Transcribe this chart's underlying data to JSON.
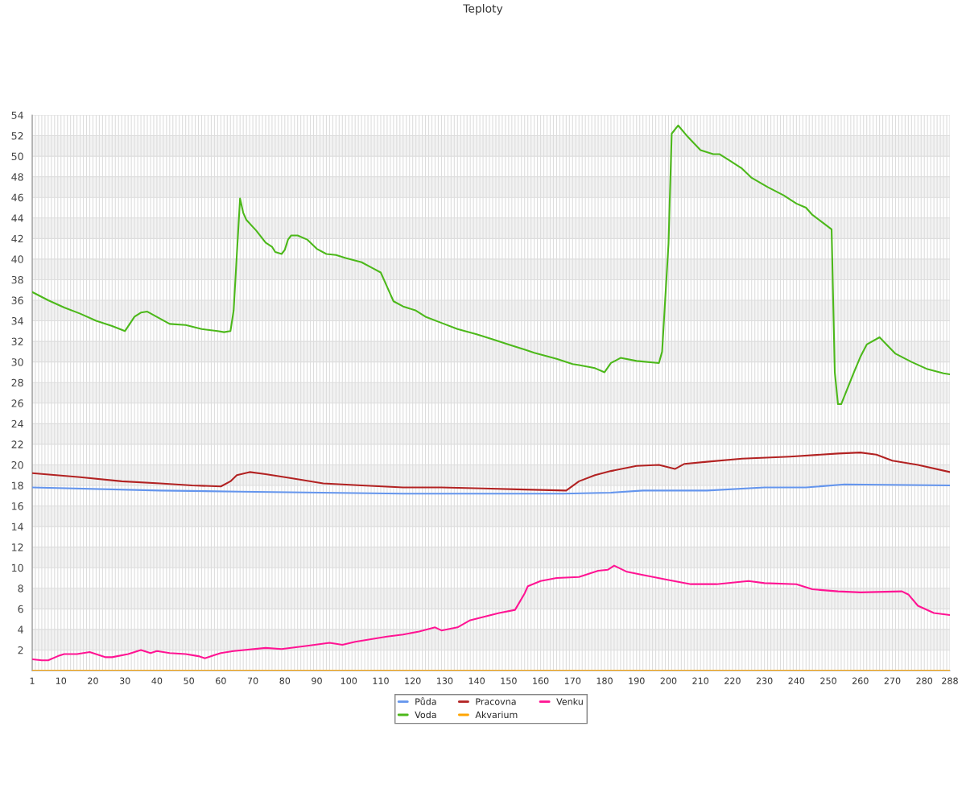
{
  "chart_data": {
    "type": "line",
    "title": "Teploty",
    "xlim": [
      1,
      288
    ],
    "xticks": [
      1,
      {
        "value": 2,
        "label": null
      },
      {
        "value": 3,
        "label": null
      },
      {
        "value": 4,
        "label": null
      },
      {
        "value": 5,
        "label": null
      },
      {
        "value": 6,
        "label": null
      },
      {
        "value": 7,
        "label": null
      },
      {
        "value": 8,
        "label": null
      },
      {
        "value": 9,
        "label": null
      },
      10,
      {
        "value": 11,
        "label": null
      },
      {
        "value": 12,
        "label": null
      },
      {
        "value": 13,
        "label": null
      },
      {
        "value": 14,
        "label": null
      },
      {
        "value": 15,
        "label": null
      },
      {
        "value": 16,
        "label": null
      },
      {
        "value": 17,
        "label": null
      },
      {
        "value": 18,
        "label": null
      },
      {
        "value": 19,
        "label": null
      },
      20,
      {
        "value": 21,
        "label": null
      },
      {
        "value": 22,
        "label": null
      },
      {
        "value": 23,
        "label": null
      },
      {
        "value": 24,
        "label": null
      },
      {
        "value": 25,
        "label": null
      },
      {
        "value": 26,
        "label": null
      },
      {
        "value": 27,
        "label": null
      },
      {
        "value": 28,
        "label": null
      },
      {
        "value": 29,
        "label": null
      },
      30,
      {
        "value": 31,
        "label": null
      },
      {
        "value": 32,
        "label": null
      },
      {
        "value": 33,
        "label": null
      },
      {
        "value": 34,
        "label": null
      },
      {
        "value": 35,
        "label": null
      },
      {
        "value": 36,
        "label": null
      },
      {
        "value": 37,
        "label": null
      },
      {
        "value": 38,
        "label": null
      },
      {
        "value": 39,
        "label": null
      },
      40,
      {
        "value": 41,
        "label": null
      },
      {
        "value": 42,
        "label": null
      },
      {
        "value": 43,
        "label": null
      },
      {
        "value": 44,
        "label": null
      },
      {
        "value": 45,
        "label": null
      },
      {
        "value": 46,
        "label": null
      },
      {
        "value": 47,
        "label": null
      },
      {
        "value": 48,
        "label": null
      },
      {
        "value": 49,
        "label": null
      },
      50,
      {
        "value": 51,
        "label": null
      },
      {
        "value": 52,
        "label": null
      },
      {
        "value": 53,
        "label": null
      },
      {
        "value": 54,
        "label": null
      },
      {
        "value": 55,
        "label": null
      },
      {
        "value": 56,
        "label": null
      },
      {
        "value": 57,
        "label": null
      },
      {
        "value": 58,
        "label": null
      },
      {
        "value": 59,
        "label": null
      },
      60,
      {
        "value": 61,
        "label": null
      },
      {
        "value": 62,
        "label": null
      },
      {
        "value": 63,
        "label": null
      },
      {
        "value": 64,
        "label": null
      },
      {
        "value": 65,
        "label": null
      },
      {
        "value": 66,
        "label": null
      },
      {
        "value": 67,
        "label": null
      },
      {
        "value": 68,
        "label": null
      },
      {
        "value": 69,
        "label": null
      },
      70,
      {
        "value": 71,
        "label": null
      },
      {
        "value": 72,
        "label": null
      },
      {
        "value": 73,
        "label": null
      },
      {
        "value": 74,
        "label": null
      },
      {
        "value": 75,
        "label": null
      },
      {
        "value": 76,
        "label": null
      },
      {
        "value": 77,
        "label": null
      },
      {
        "value": 78,
        "label": null
      },
      {
        "value": 79,
        "label": null
      },
      80,
      {
        "value": 81,
        "label": null
      },
      {
        "value": 82,
        "label": null
      },
      {
        "value": 83,
        "label": null
      },
      {
        "value": 84,
        "label": null
      },
      {
        "value": 85,
        "label": null
      },
      {
        "value": 86,
        "label": null
      },
      {
        "value": 87,
        "label": null
      },
      {
        "value": 88,
        "label": null
      },
      {
        "value": 89,
        "label": null
      },
      90,
      {
        "value": 91,
        "label": null
      },
      {
        "value": 92,
        "label": null
      },
      {
        "value": 93,
        "label": null
      },
      {
        "value": 94,
        "label": null
      },
      {
        "value": 95,
        "label": null
      },
      {
        "value": 96,
        "label": null
      },
      {
        "value": 97,
        "label": null
      },
      {
        "value": 98,
        "label": null
      },
      {
        "value": 99,
        "label": null
      },
      100,
      {
        "value": 101,
        "label": null
      },
      {
        "value": 102,
        "label": null
      },
      {
        "value": 103,
        "label": null
      },
      {
        "value": 104,
        "label": null
      },
      {
        "value": 105,
        "label": null
      },
      {
        "value": 106,
        "label": null
      },
      {
        "value": 107,
        "label": null
      },
      {
        "value": 108,
        "label": null
      },
      {
        "value": 109,
        "label": null
      },
      110,
      {
        "value": 111,
        "label": null
      },
      {
        "value": 112,
        "label": null
      },
      {
        "value": 113,
        "label": null
      },
      {
        "value": 114,
        "label": null
      },
      {
        "value": 115,
        "label": null
      },
      {
        "value": 116,
        "label": null
      },
      {
        "value": 117,
        "label": null
      },
      {
        "value": 118,
        "label": null
      },
      {
        "value": 119,
        "label": null
      },
      120,
      {
        "value": 121,
        "label": null
      },
      {
        "value": 122,
        "label": null
      },
      {
        "value": 123,
        "label": null
      },
      {
        "value": 124,
        "label": null
      },
      {
        "value": 125,
        "label": null
      },
      {
        "value": 126,
        "label": null
      },
      {
        "value": 127,
        "label": null
      },
      {
        "value": 128,
        "label": null
      },
      {
        "value": 129,
        "label": null
      },
      130,
      {
        "value": 131,
        "label": null
      },
      {
        "value": 132,
        "label": null
      },
      {
        "value": 133,
        "label": null
      },
      {
        "value": 134,
        "label": null
      },
      {
        "value": 135,
        "label": null
      },
      {
        "value": 136,
        "label": null
      },
      {
        "value": 137,
        "label": null
      },
      {
        "value": 138,
        "label": null
      },
      {
        "value": 139,
        "label": null
      },
      140,
      {
        "value": 141,
        "label": null
      },
      {
        "value": 142,
        "label": null
      },
      {
        "value": 143,
        "label": null
      },
      {
        "value": 144,
        "label": null
      },
      {
        "value": 145,
        "label": null
      },
      {
        "value": 146,
        "label": null
      },
      {
        "value": 147,
        "label": null
      },
      {
        "value": 148,
        "label": null
      },
      {
        "value": 149,
        "label": null
      },
      150,
      {
        "value": 151,
        "label": null
      },
      {
        "value": 152,
        "label": null
      },
      {
        "value": 153,
        "label": null
      },
      {
        "value": 154,
        "label": null
      },
      {
        "value": 155,
        "label": null
      },
      {
        "value": 156,
        "label": null
      },
      {
        "value": 157,
        "label": null
      },
      {
        "value": 158,
        "label": null
      },
      {
        "value": 159,
        "label": null
      },
      160,
      {
        "value": 161,
        "label": null
      },
      {
        "value": 162,
        "label": null
      },
      {
        "value": 163,
        "label": null
      },
      {
        "value": 164,
        "label": null
      },
      {
        "value": 165,
        "label": null
      },
      {
        "value": 166,
        "label": null
      },
      {
        "value": 167,
        "label": null
      },
      {
        "value": 168,
        "label": null
      },
      {
        "value": 169,
        "label": null
      },
      170,
      {
        "value": 171,
        "label": null
      },
      {
        "value": 172,
        "label": null
      },
      {
        "value": 173,
        "label": null
      },
      {
        "value": 174,
        "label": null
      },
      {
        "value": 175,
        "label": null
      },
      {
        "value": 176,
        "label": null
      },
      {
        "value": 177,
        "label": null
      },
      {
        "value": 178,
        "label": null
      },
      {
        "value": 179,
        "label": null
      },
      180,
      {
        "value": 181,
        "label": null
      },
      {
        "value": 182,
        "label": null
      },
      {
        "value": 183,
        "label": null
      },
      {
        "value": 184,
        "label": null
      },
      {
        "value": 185,
        "label": null
      },
      {
        "value": 186,
        "label": null
      },
      {
        "value": 187,
        "label": null
      },
      {
        "value": 188,
        "label": null
      },
      {
        "value": 189,
        "label": null
      },
      190,
      {
        "value": 191,
        "label": null
      },
      {
        "value": 192,
        "label": null
      },
      {
        "value": 193,
        "label": null
      },
      {
        "value": 194,
        "label": null
      },
      {
        "value": 195,
        "label": null
      },
      {
        "value": 196,
        "label": null
      },
      {
        "value": 197,
        "label": null
      },
      {
        "value": 198,
        "label": null
      },
      {
        "value": 199,
        "label": null
      },
      200,
      {
        "value": 201,
        "label": null
      },
      {
        "value": 202,
        "label": null
      },
      {
        "value": 203,
        "label": null
      },
      {
        "value": 204,
        "label": null
      },
      {
        "value": 205,
        "label": null
      },
      {
        "value": 206,
        "label": null
      },
      {
        "value": 207,
        "label": null
      },
      {
        "value": 208,
        "label": null
      },
      {
        "value": 209,
        "label": null
      },
      210,
      {
        "value": 211,
        "label": null
      },
      {
        "value": 212,
        "label": null
      },
      {
        "value": 213,
        "label": null
      },
      {
        "value": 214,
        "label": null
      },
      {
        "value": 215,
        "label": null
      },
      {
        "value": 216,
        "label": null
      },
      {
        "value": 217,
        "label": null
      },
      {
        "value": 218,
        "label": null
      },
      {
        "value": 219,
        "label": null
      },
      220,
      {
        "value": 221,
        "label": null
      },
      {
        "value": 222,
        "label": null
      },
      {
        "value": 223,
        "label": null
      },
      {
        "value": 224,
        "label": null
      },
      {
        "value": 225,
        "label": null
      },
      {
        "value": 226,
        "label": null
      },
      {
        "value": 227,
        "label": null
      },
      {
        "value": 228,
        "label": null
      },
      {
        "value": 229,
        "label": null
      },
      230,
      {
        "value": 231,
        "label": null
      },
      {
        "value": 232,
        "label": null
      },
      {
        "value": 233,
        "label": null
      },
      {
        "value": 234,
        "label": null
      },
      {
        "value": 235,
        "label": null
      },
      {
        "value": 236,
        "label": null
      },
      {
        "value": 237,
        "label": null
      },
      {
        "value": 238,
        "label": null
      },
      {
        "value": 239,
        "label": null
      },
      240,
      {
        "value": 241,
        "label": null
      },
      {
        "value": 242,
        "label": null
      },
      {
        "value": 243,
        "label": null
      },
      {
        "value": 244,
        "label": null
      },
      {
        "value": 245,
        "label": null
      },
      {
        "value": 246,
        "label": null
      },
      {
        "value": 247,
        "label": null
      },
      {
        "value": 248,
        "label": null
      },
      {
        "value": 249,
        "label": null
      },
      250,
      {
        "value": 251,
        "label": null
      },
      {
        "value": 252,
        "label": null
      },
      {
        "value": 253,
        "label": null
      },
      {
        "value": 254,
        "label": null
      },
      {
        "value": 255,
        "label": null
      },
      {
        "value": 256,
        "label": null
      },
      {
        "value": 257,
        "label": null
      },
      {
        "value": 258,
        "label": null
      },
      {
        "value": 259,
        "label": null
      },
      260,
      {
        "value": 261,
        "label": null
      },
      {
        "value": 262,
        "label": null
      },
      {
        "value": 263,
        "label": null
      },
      {
        "value": 264,
        "label": null
      },
      {
        "value": 265,
        "label": null
      },
      {
        "value": 266,
        "label": null
      },
      {
        "value": 267,
        "label": null
      },
      {
        "value": 268,
        "label": null
      },
      {
        "value": 269,
        "label": null
      },
      270,
      {
        "value": 271,
        "label": null
      },
      {
        "value": 272,
        "label": null
      },
      {
        "value": 273,
        "label": null
      },
      {
        "value": 274,
        "label": null
      },
      {
        "value": 275,
        "label": null
      },
      {
        "value": 276,
        "label": null
      },
      {
        "value": 277,
        "label": null
      },
      {
        "value": 278,
        "label": null
      },
      {
        "value": 279,
        "label": null
      },
      280,
      {
        "value": 281,
        "label": null
      },
      {
        "value": 282,
        "label": null
      },
      {
        "value": 283,
        "label": null
      },
      {
        "value": 284,
        "label": null
      },
      {
        "value": 285,
        "label": null
      },
      {
        "value": 286,
        "label": null
      },
      {
        "value": 287,
        "label": null
      },
      288
    ],
    "ylim": [
      0,
      54
    ],
    "yticks": [
      {
        "value": 0,
        "label": null
      },
      2,
      4,
      6,
      8,
      10,
      12,
      14,
      16,
      18,
      20,
      22,
      24,
      26,
      28,
      30,
      32,
      34,
      36,
      38,
      40,
      42,
      44,
      46,
      48,
      50,
      52,
      54
    ],
    "grid": true,
    "legend": "bottom",
    "marker": "none",
    "line_style": "solid",
    "bands": [
      {
        "axis": "y",
        "from": 2,
        "to": 4,
        "color": "#f2f2f2"
      },
      {
        "axis": "y",
        "from": 6,
        "to": 8,
        "color": "#f2f2f2"
      },
      {
        "axis": "y",
        "from": 10,
        "to": 12,
        "color": "#f2f2f2"
      },
      {
        "axis": "y",
        "from": 14,
        "to": 16,
        "color": "#f2f2f2"
      },
      {
        "axis": "y",
        "from": 18,
        "to": 20,
        "color": "#f2f2f2"
      },
      {
        "axis": "y",
        "from": 22,
        "to": 24,
        "color": "#f2f2f2"
      },
      {
        "axis": "y",
        "from": 26,
        "to": 28,
        "color": "#f2f2f2"
      },
      {
        "axis": "y",
        "from": 30,
        "to": 32,
        "color": "#f2f2f2"
      },
      {
        "axis": "y",
        "from": 34,
        "to": 36,
        "color": "#f2f2f2"
      },
      {
        "axis": "y",
        "from": 38,
        "to": 40,
        "color": "#f2f2f2"
      },
      {
        "axis": "y",
        "from": 42,
        "to": 44,
        "color": "#f2f2f2"
      },
      {
        "axis": "y",
        "from": 46,
        "to": 48,
        "color": "#f2f2f2"
      },
      {
        "axis": "y",
        "from": 50,
        "to": 52,
        "color": "#f2f2f2"
      }
    ],
    "series": [
      {
        "name": "Půda",
        "color": "#6495ed",
        "x": [
          1,
          41,
          66,
          117,
          167,
          182,
          192,
          212,
          230,
          243,
          255,
          288
        ],
        "values": [
          17.8,
          17.5,
          17.4,
          17.2,
          17.2,
          17.3,
          17.5,
          17.5,
          17.8,
          17.8,
          18.1,
          18.0
        ]
      },
      {
        "name": "Voda",
        "color": "#4cb81a",
        "x": [
          1,
          6,
          11,
          16,
          21,
          26,
          30,
          33,
          35,
          37,
          44,
          49,
          54,
          59,
          61,
          63,
          64,
          66,
          67,
          68,
          71,
          74,
          76,
          77,
          79,
          80,
          81,
          82,
          84,
          87,
          90,
          93,
          96,
          99,
          104,
          107,
          110,
          111,
          113,
          114,
          117,
          121,
          124,
          129,
          134,
          140,
          145,
          150,
          155,
          158,
          165,
          170,
          172,
          177,
          180,
          182,
          185,
          190,
          197,
          198,
          200,
          201,
          203,
          206,
          210,
          214,
          216,
          219,
          223,
          226,
          231,
          236,
          240,
          243,
          245,
          248,
          251,
          252,
          253,
          254,
          258,
          260,
          262,
          266,
          271,
          276,
          281,
          286,
          288
        ],
        "values": [
          36.8,
          36.0,
          35.3,
          34.7,
          34.0,
          33.5,
          33.0,
          34.4,
          34.8,
          34.9,
          33.7,
          33.6,
          33.2,
          33.0,
          32.9,
          33.0,
          35.0,
          45.9,
          44.5,
          43.8,
          42.8,
          41.6,
          41.2,
          40.7,
          40.5,
          40.9,
          41.9,
          42.3,
          42.3,
          41.9,
          41.0,
          40.5,
          40.4,
          40.1,
          39.7,
          39.2,
          38.7,
          38.0,
          36.6,
          35.9,
          35.4,
          35.0,
          34.4,
          33.8,
          33.2,
          32.7,
          32.2,
          31.7,
          31.2,
          30.9,
          30.3,
          29.8,
          29.7,
          29.4,
          29.0,
          29.9,
          30.4,
          30.1,
          29.9,
          31.0,
          41.5,
          52.2,
          53.0,
          51.9,
          50.6,
          50.2,
          50.2,
          49.6,
          48.8,
          47.9,
          47.0,
          46.2,
          45.4,
          45.0,
          44.3,
          43.6,
          42.9,
          29.0,
          25.9,
          25.9,
          29.0,
          30.5,
          31.7,
          32.4,
          30.8,
          30.0,
          29.3,
          28.9,
          28.8
        ]
      },
      {
        "name": "Pracovna",
        "color": "#b22222",
        "x": [
          1,
          16,
          29,
          41,
          51,
          60,
          63,
          65,
          69,
          74,
          82,
          92,
          104,
          117,
          129,
          142,
          155,
          168,
          172,
          177,
          182,
          190,
          197,
          202,
          205,
          212,
          223,
          238,
          253,
          260,
          265,
          270,
          278,
          288
        ],
        "values": [
          19.2,
          18.8,
          18.4,
          18.2,
          18.0,
          17.9,
          18.4,
          19.0,
          19.3,
          19.1,
          18.7,
          18.2,
          18.0,
          17.8,
          17.8,
          17.7,
          17.6,
          17.5,
          18.4,
          19.0,
          19.4,
          19.9,
          20.0,
          19.6,
          20.1,
          20.3,
          20.6,
          20.8,
          21.1,
          21.2,
          21.0,
          20.4,
          20.0,
          19.3
        ]
      },
      {
        "name": "Akvarium",
        "color": "#ffa500",
        "x": [
          1,
          288
        ],
        "values": [
          0,
          0
        ]
      },
      {
        "name": "Venku",
        "color": "#ff1493",
        "x": [
          1,
          4,
          6,
          9,
          11,
          15,
          19,
          24,
          26,
          31,
          35,
          38,
          40,
          44,
          49,
          53,
          55,
          58,
          60,
          64,
          74,
          79,
          87,
          94,
          98,
          102,
          112,
          117,
          122,
          127,
          129,
          134,
          138,
          142,
          147,
          152,
          155,
          156,
          160,
          165,
          172,
          178,
          181,
          183,
          187,
          192,
          200,
          207,
          215,
          225,
          230,
          240,
          245,
          253,
          260,
          273,
          275,
          278,
          283,
          288
        ],
        "values": [
          1.1,
          1.0,
          1.0,
          1.4,
          1.6,
          1.6,
          1.8,
          1.3,
          1.3,
          1.6,
          2.0,
          1.7,
          1.9,
          1.7,
          1.6,
          1.4,
          1.2,
          1.5,
          1.7,
          1.9,
          2.2,
          2.1,
          2.4,
          2.7,
          2.5,
          2.8,
          3.3,
          3.5,
          3.8,
          4.2,
          3.9,
          4.2,
          4.9,
          5.2,
          5.6,
          5.9,
          7.5,
          8.2,
          8.7,
          9.0,
          9.1,
          9.7,
          9.8,
          10.2,
          9.6,
          9.3,
          8.8,
          8.4,
          8.4,
          8.7,
          8.5,
          8.4,
          7.9,
          7.7,
          7.6,
          7.7,
          7.4,
          6.3,
          5.6,
          5.4
        ]
      }
    ]
  }
}
